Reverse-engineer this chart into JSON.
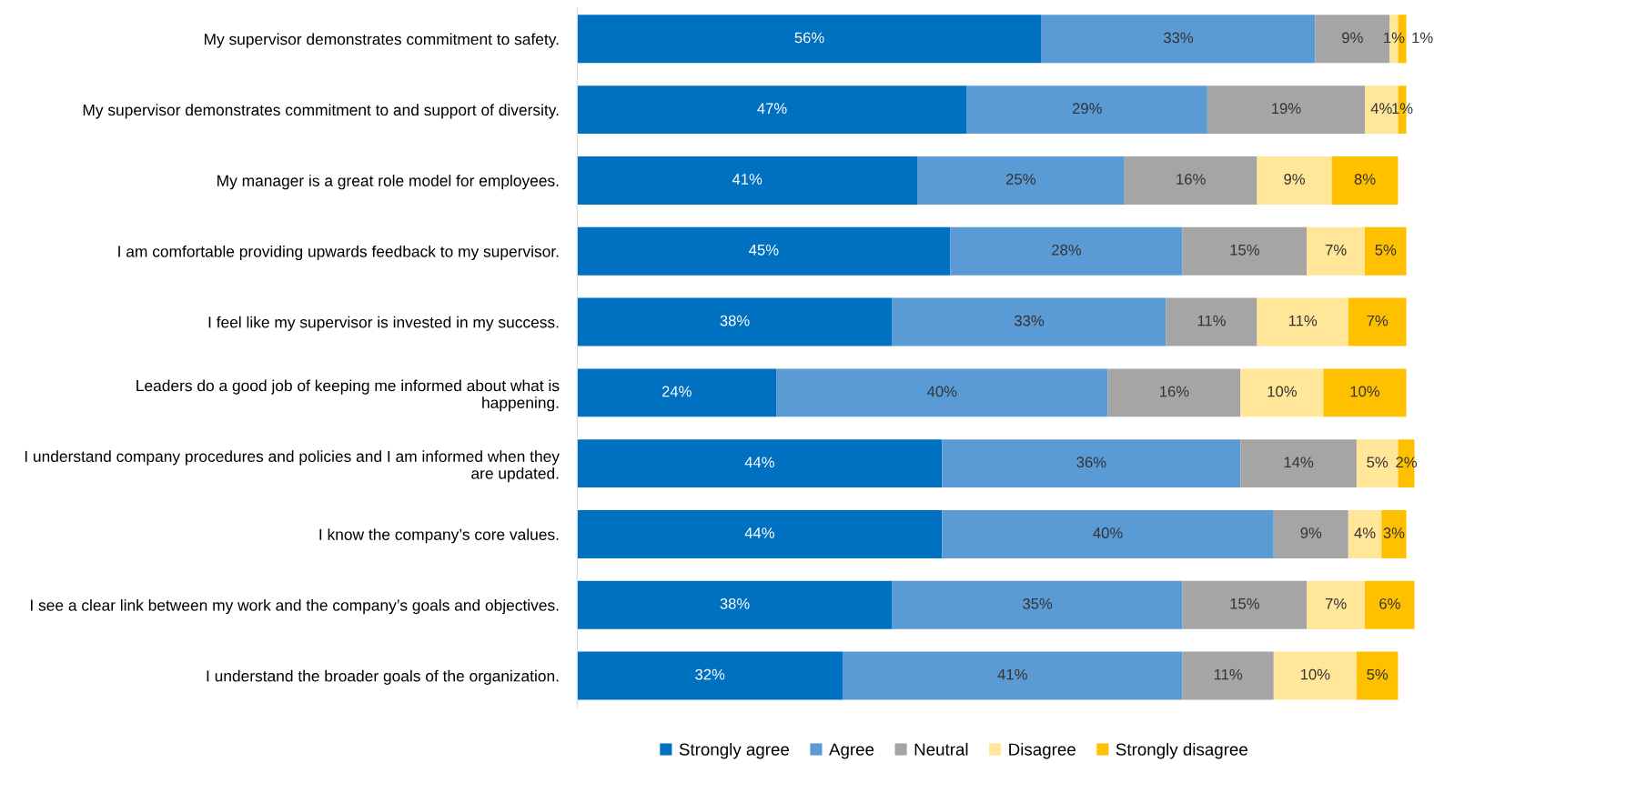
{
  "chart_data": {
    "type": "bar",
    "orientation": "horizontal",
    "stacked": true,
    "legend": "bottom",
    "grid": false,
    "tick_labels": "y",
    "categories": [
      "My supervisor demonstrates commitment to safety.",
      "My supervisor demonstrates commitment to and support of diversity.",
      "My manager is a great role model for employees.",
      "I am comfortable providing upwards feedback to my supervisor.",
      "I feel like my supervisor is invested in my success.",
      "Leaders do a good job of keeping me informed about what is\nhappening.",
      "I understand company procedures and policies and I am informed when they\nare updated.",
      "I know the company’s core values.",
      "I see a clear link between my work and the company’s goals and objectives.",
      "I understand the broader goals of the organization."
    ],
    "series": [
      {
        "name": "Strongly agree",
        "color": "#0070c0",
        "values": [
          56,
          47,
          41,
          45,
          38,
          24,
          44,
          44,
          38,
          32
        ],
        "value_labels": [
          "56%",
          "47%",
          "41%",
          "45%",
          "38%",
          "24%",
          "44%",
          "44%",
          "38%",
          "32%"
        ]
      },
      {
        "name": "Agree",
        "color": "#5b9bd5",
        "values": [
          33,
          29,
          25,
          28,
          33,
          40,
          36,
          40,
          35,
          41
        ],
        "value_labels": [
          "33%",
          "29%",
          "25%",
          "28%",
          "33%",
          "40%",
          "36%",
          "40%",
          "35%",
          "41%"
        ]
      },
      {
        "name": "Neutral",
        "color": "#a5a5a5",
        "values": [
          9,
          19,
          16,
          15,
          11,
          16,
          14,
          9,
          15,
          11
        ],
        "value_labels": [
          "9%",
          "19%",
          "16%",
          "15%",
          "11%",
          "16%",
          "14%",
          "9%",
          "15%",
          "11%"
        ]
      },
      {
        "name": "Disagree",
        "color": "#ffe699",
        "values": [
          1,
          4,
          9,
          7,
          11,
          10,
          5,
          4,
          7,
          10
        ],
        "value_labels": [
          "1%",
          "4%",
          "9%",
          "7%",
          "11%",
          "10%",
          "5%",
          "4%",
          "7%",
          "10%"
        ]
      },
      {
        "name": "Strongly disagree",
        "color": "#ffc000",
        "values": [
          1,
          1,
          8,
          5,
          7,
          10,
          2,
          3,
          6,
          5
        ],
        "value_labels": [
          "1%",
          "1%",
          "8%",
          "5%",
          "7%",
          "10%",
          "2%",
          "3%",
          "6%",
          "5%"
        ]
      }
    ]
  }
}
